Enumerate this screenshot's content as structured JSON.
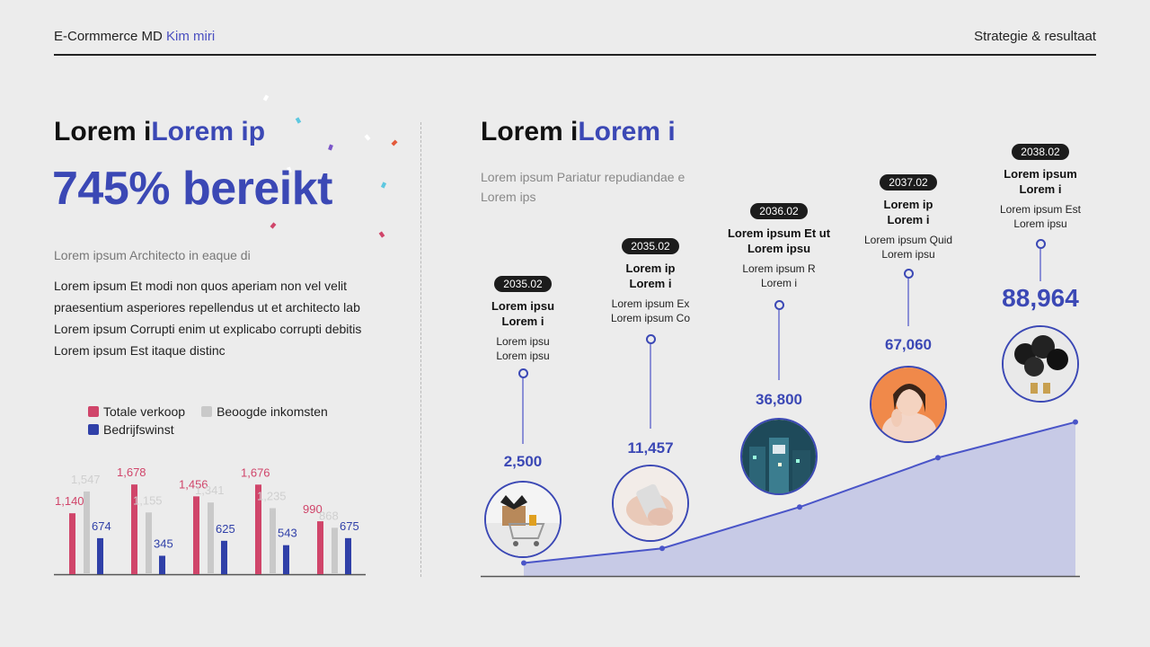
{
  "header": {
    "brand": "E-Cormmerce MD",
    "brand_accent": "Kim miri",
    "section": "Strategie & resultaat"
  },
  "left": {
    "title_plain": "Lorem i",
    "title_accent": "Lorem ip",
    "big_number": "745% bereikt",
    "subtitle": "Lorem ipsum Architecto in eaque di",
    "body_lines": [
      "Lorem ipsum Et modi non quos aperiam non vel velit",
      "praesentium asperiores repellendus ut et architecto lab",
      "Lorem ipsum Corrupti enim ut explicabo corrupti debitis",
      "Lorem ipsum Est itaque distinc"
    ]
  },
  "right": {
    "title_plain": "Lorem i",
    "title_accent": "Lorem i",
    "subtitle": "Lorem ipsum Pariatur repudiandae e Lorem ips"
  },
  "colors": {
    "accent": "#3b48b5",
    "sales": "#d0456a",
    "target": "#c9c9c9",
    "profit": "#3040a8",
    "area_fill": "#c3c6e6",
    "area_line": "#4a55c8"
  },
  "chart_data": [
    {
      "type": "bar",
      "title": "",
      "legend_position": "top",
      "series": [
        {
          "name": "Totale verkoop",
          "color": "#d0456a",
          "values": [
            1140,
            1678,
            1456,
            1676,
            990
          ]
        },
        {
          "name": "Beoogde inkomsten",
          "color": "#c9c9c9",
          "values": [
            1547,
            1155,
            1341,
            1235,
            868
          ]
        },
        {
          "name": "Bedrijfswinst",
          "color": "#3040a8",
          "values": [
            674,
            345,
            625,
            543,
            675
          ]
        }
      ],
      "value_labels": [
        [
          "1,140",
          "1,547",
          "674"
        ],
        [
          "1,678",
          "1,155",
          "345"
        ],
        [
          "1,456",
          "1,341",
          "625"
        ],
        [
          "1,676",
          "1,235",
          "543"
        ],
        [
          "990",
          "868",
          "675"
        ]
      ],
      "ylim": [
        0,
        1900
      ],
      "grid": false
    },
    {
      "type": "area",
      "title": "",
      "grid": false,
      "x": [
        "2035.02",
        "2035.02",
        "2036.02",
        "2037.02",
        "2038.02"
      ],
      "values": [
        2500,
        11457,
        36800,
        67060,
        88964
      ],
      "value_labels": [
        "2,500",
        "11,457",
        "36,800",
        "67,060",
        "88,964"
      ],
      "ylim": [
        0,
        100000
      ]
    }
  ],
  "milestones": [
    {
      "date": "2035.02",
      "title_lines": [
        "Lorem ipsu",
        "Lorem i"
      ],
      "desc_lines": [
        "Lorem ipsu",
        "Lorem ipsu"
      ],
      "value": "2,500",
      "photo": "shopping-cart-gift-photo"
    },
    {
      "date": "2035.02",
      "title_lines": [
        "Lorem ip",
        "Lorem i"
      ],
      "desc_lines": [
        "Lorem ipsum Ex",
        "Lorem ipsum Co"
      ],
      "value": "11,457",
      "photo": "hands-phone-photo"
    },
    {
      "date": "2036.02",
      "title_lines": [
        "Lorem ipsum Et ut",
        "Lorem ipsu"
      ],
      "desc_lines": [
        "Lorem ipsum R",
        "Lorem i"
      ],
      "value": "36,800",
      "photo": "city-night-photo"
    },
    {
      "date": "2037.02",
      "title_lines": [
        "Lorem ip",
        "Lorem i"
      ],
      "desc_lines": [
        "Lorem ipsum Quid",
        "Lorem ipsu"
      ],
      "value": "67,060",
      "photo": "woman-portrait-photo"
    },
    {
      "date": "2038.02",
      "title_lines": [
        "Lorem ipsum",
        "Lorem i"
      ],
      "desc_lines": [
        "Lorem ipsum Est",
        "Lorem ipsu"
      ],
      "value": "88,964",
      "photo": "black-balloons-photo"
    }
  ]
}
